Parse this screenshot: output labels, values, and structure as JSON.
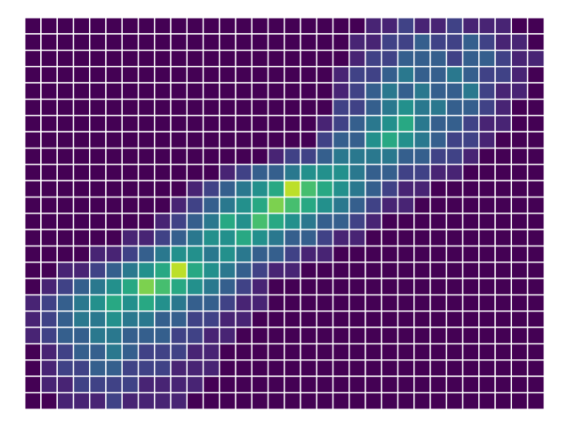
{
  "chart_data": {
    "type": "heatmap",
    "tick_labels": false,
    "grid": false,
    "zlim": [
      0,
      10
    ],
    "cells": [
      [
        0,
        0,
        0,
        0,
        0,
        0,
        0,
        0,
        0,
        0,
        0,
        0,
        0,
        0,
        0,
        0,
        0,
        0,
        0,
        0,
        0,
        1,
        1,
        2,
        1,
        1,
        2,
        1,
        1,
        1,
        0,
        0
      ],
      [
        0,
        0,
        0,
        0,
        0,
        0,
        0,
        0,
        0,
        0,
        0,
        0,
        0,
        0,
        0,
        0,
        0,
        0,
        0,
        0,
        1,
        1,
        2,
        2,
        3,
        2,
        2,
        3,
        2,
        1,
        1,
        0
      ],
      [
        0,
        0,
        0,
        0,
        0,
        0,
        0,
        0,
        0,
        0,
        0,
        0,
        0,
        0,
        0,
        0,
        0,
        0,
        0,
        0,
        1,
        2,
        2,
        3,
        3,
        3,
        2,
        3,
        3,
        2,
        1,
        1
      ],
      [
        0,
        0,
        0,
        0,
        0,
        0,
        0,
        0,
        0,
        0,
        0,
        0,
        0,
        0,
        0,
        0,
        0,
        0,
        0,
        1,
        2,
        2,
        3,
        4,
        3,
        3,
        4,
        3,
        2,
        2,
        1,
        0
      ],
      [
        0,
        0,
        0,
        0,
        0,
        0,
        0,
        0,
        0,
        0,
        0,
        0,
        0,
        0,
        0,
        0,
        0,
        0,
        0,
        1,
        2,
        3,
        4,
        3,
        4,
        3,
        3,
        4,
        2,
        1,
        1,
        0
      ],
      [
        0,
        0,
        0,
        0,
        0,
        0,
        0,
        0,
        0,
        0,
        0,
        0,
        0,
        0,
        0,
        0,
        0,
        0,
        0,
        2,
        2,
        3,
        4,
        5,
        4,
        4,
        3,
        3,
        2,
        1,
        0,
        0
      ],
      [
        0,
        0,
        0,
        0,
        0,
        0,
        0,
        0,
        0,
        0,
        0,
        0,
        0,
        0,
        0,
        0,
        0,
        0,
        1,
        2,
        3,
        4,
        5,
        6,
        4,
        3,
        3,
        2,
        1,
        1,
        0,
        0
      ],
      [
        0,
        0,
        0,
        0,
        0,
        0,
        0,
        0,
        0,
        0,
        0,
        0,
        0,
        0,
        0,
        0,
        0,
        0,
        2,
        3,
        3,
        5,
        6,
        5,
        4,
        3,
        2,
        2,
        1,
        0,
        0,
        0
      ],
      [
        0,
        0,
        0,
        0,
        0,
        0,
        0,
        0,
        0,
        0,
        0,
        0,
        0,
        0,
        0,
        1,
        2,
        2,
        3,
        4,
        4,
        4,
        4,
        3,
        3,
        2,
        2,
        1,
        0,
        0,
        0,
        0
      ],
      [
        0,
        0,
        0,
        0,
        0,
        0,
        0,
        0,
        0,
        0,
        0,
        0,
        1,
        2,
        3,
        3,
        4,
        5,
        5,
        5,
        4,
        3,
        3,
        2,
        2,
        1,
        1,
        0,
        0,
        0,
        0,
        0
      ],
      [
        0,
        0,
        0,
        0,
        0,
        0,
        0,
        0,
        0,
        0,
        1,
        2,
        3,
        4,
        5,
        6,
        9,
        7,
        6,
        5,
        4,
        3,
        2,
        1,
        1,
        0,
        0,
        0,
        0,
        0,
        0,
        0
      ],
      [
        0,
        0,
        0,
        0,
        0,
        0,
        0,
        0,
        0,
        1,
        2,
        3,
        4,
        5,
        6,
        8,
        7,
        6,
        5,
        4,
        3,
        2,
        1,
        1,
        0,
        0,
        0,
        0,
        0,
        0,
        0,
        0
      ],
      [
        0,
        0,
        0,
        0,
        0,
        0,
        0,
        0,
        1,
        2,
        3,
        4,
        6,
        5,
        7,
        6,
        5,
        4,
        3,
        3,
        2,
        1,
        0,
        0,
        0,
        0,
        0,
        0,
        0,
        0,
        0,
        0
      ],
      [
        0,
        0,
        0,
        0,
        0,
        0,
        1,
        1,
        2,
        3,
        4,
        5,
        5,
        6,
        5,
        4,
        3,
        3,
        2,
        1,
        1,
        0,
        0,
        0,
        0,
        0,
        0,
        0,
        0,
        0,
        0,
        0
      ],
      [
        0,
        0,
        0,
        0,
        1,
        1,
        2,
        3,
        4,
        5,
        5,
        4,
        5,
        4,
        3,
        3,
        2,
        1,
        1,
        0,
        0,
        0,
        0,
        0,
        0,
        0,
        0,
        0,
        0,
        0,
        0,
        0
      ],
      [
        0,
        0,
        1,
        1,
        2,
        3,
        4,
        5,
        6,
        9,
        6,
        5,
        4,
        3,
        2,
        1,
        1,
        0,
        0,
        0,
        0,
        0,
        0,
        0,
        0,
        0,
        0,
        0,
        0,
        0,
        0,
        0
      ],
      [
        0,
        1,
        2,
        3,
        4,
        5,
        6,
        8,
        7,
        6,
        5,
        4,
        3,
        2,
        1,
        0,
        0,
        0,
        0,
        0,
        0,
        0,
        0,
        0,
        0,
        0,
        0,
        0,
        0,
        0,
        0,
        0
      ],
      [
        1,
        2,
        3,
        4,
        5,
        6,
        5,
        6,
        5,
        4,
        3,
        3,
        2,
        1,
        1,
        0,
        0,
        0,
        0,
        0,
        0,
        0,
        0,
        0,
        0,
        0,
        0,
        0,
        0,
        0,
        0,
        0
      ],
      [
        1,
        2,
        3,
        4,
        4,
        5,
        4,
        4,
        3,
        3,
        2,
        2,
        1,
        1,
        0,
        0,
        0,
        0,
        0,
        0,
        0,
        0,
        0,
        0,
        0,
        0,
        0,
        0,
        0,
        0,
        0,
        0
      ],
      [
        1,
        2,
        3,
        3,
        4,
        4,
        3,
        3,
        3,
        2,
        2,
        1,
        1,
        0,
        0,
        0,
        0,
        0,
        0,
        0,
        0,
        0,
        0,
        0,
        0,
        0,
        0,
        0,
        0,
        0,
        0,
        0
      ],
      [
        0,
        1,
        2,
        3,
        3,
        4,
        3,
        2,
        2,
        2,
        1,
        1,
        0,
        0,
        0,
        0,
        0,
        0,
        0,
        0,
        0,
        0,
        0,
        0,
        0,
        0,
        0,
        0,
        0,
        0,
        0,
        0
      ],
      [
        0,
        1,
        2,
        2,
        3,
        3,
        2,
        2,
        2,
        1,
        1,
        1,
        0,
        0,
        0,
        0,
        0,
        0,
        0,
        0,
        0,
        0,
        0,
        0,
        0,
        0,
        0,
        0,
        0,
        0,
        0,
        0
      ],
      [
        0,
        1,
        1,
        2,
        2,
        2,
        2,
        1,
        1,
        1,
        1,
        0,
        0,
        0,
        0,
        0,
        0,
        0,
        0,
        0,
        0,
        0,
        0,
        0,
        0,
        0,
        0,
        0,
        0,
        0,
        0,
        0
      ],
      [
        0,
        0,
        1,
        1,
        1,
        2,
        1,
        1,
        1,
        1,
        0,
        0,
        0,
        0,
        0,
        0,
        0,
        0,
        0,
        0,
        0,
        0,
        0,
        0,
        0,
        0,
        0,
        0,
        0,
        0,
        0,
        0
      ]
    ]
  }
}
